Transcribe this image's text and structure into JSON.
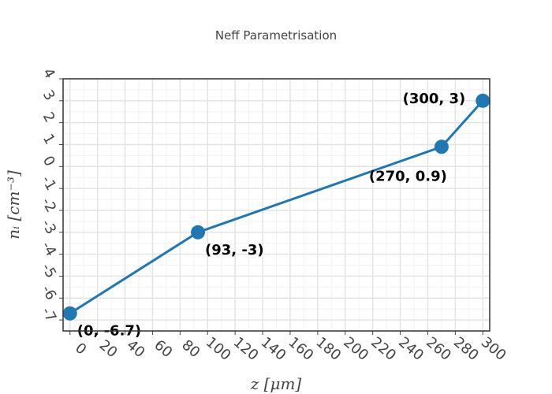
{
  "chart_data": {
    "type": "line",
    "title": "Neff  Parametrisation",
    "xlabel": "z [μm]",
    "ylabel": "nᵢ [cm⁻³]",
    "xlim": [
      -5,
      305
    ],
    "ylim": [
      -7.5,
      4
    ],
    "x_ticks": [
      0,
      20,
      40,
      60,
      80,
      100,
      120,
      140,
      160,
      180,
      200,
      220,
      240,
      260,
      280,
      300
    ],
    "y_ticks": [
      -7,
      -6,
      -5,
      -4,
      -3,
      -2,
      -1,
      0,
      1,
      2,
      3,
      4
    ],
    "x_tick_labels": [
      "0",
      "20",
      "40",
      "60",
      "80",
      "100",
      "120",
      "140",
      "160",
      "180",
      "200",
      "220",
      "240",
      "260",
      "280",
      "300"
    ],
    "y_tick_labels": [
      "-7",
      "-6",
      "-5",
      "-4",
      "-3",
      "-2",
      "-1",
      "0",
      "1",
      "2",
      "3",
      "4"
    ],
    "grid": true,
    "series": [
      {
        "x": [
          0,
          93,
          270,
          300
        ],
        "y": [
          -6.7,
          -3,
          0.9,
          3
        ],
        "point_labels": [
          "(0, -6.7)",
          "(93, -3)",
          "(270, 0.9)",
          "(300, 3)"
        ],
        "label_positions": [
          "bottom-right",
          "bottom-right",
          "bottom-left",
          "top-left"
        ],
        "color": "#1f77b4"
      }
    ]
  }
}
